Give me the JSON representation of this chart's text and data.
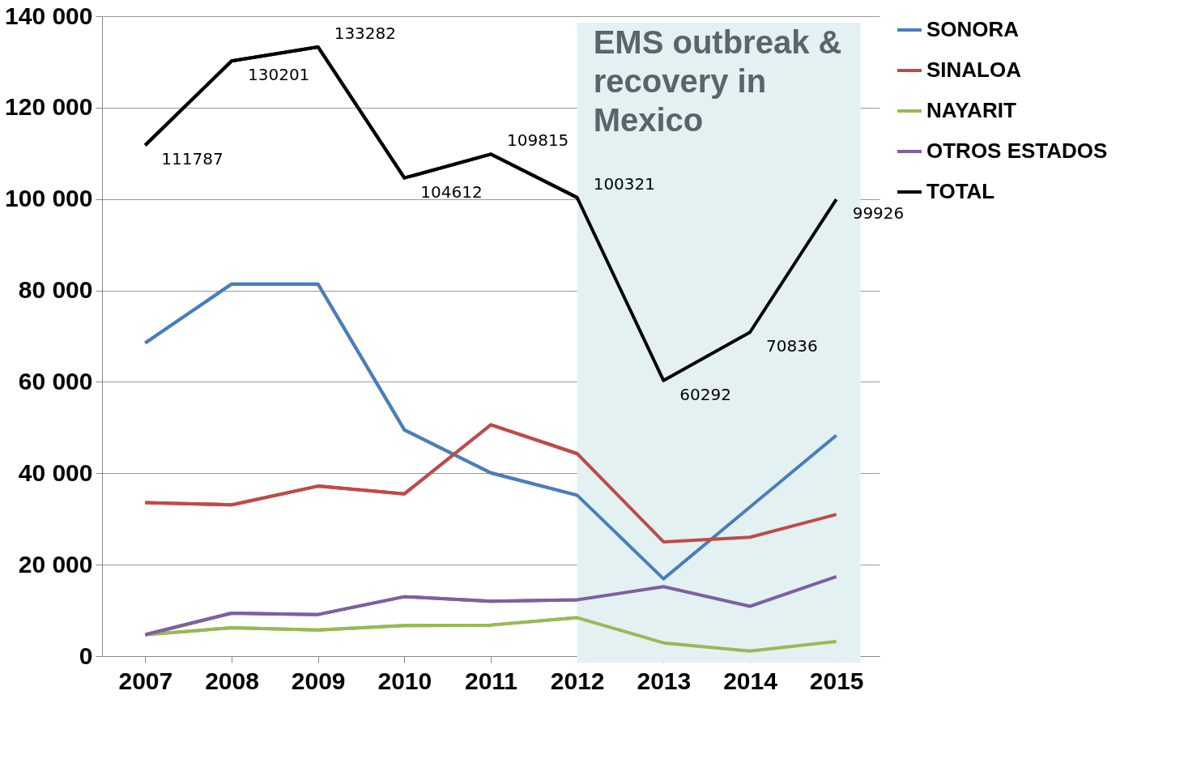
{
  "chart_data": {
    "type": "line",
    "categories": [
      "2007",
      "2008",
      "2009",
      "2010",
      "2011",
      "2012",
      "2013",
      "2014",
      "2015"
    ],
    "series": [
      {
        "name": "SONORA",
        "color": "#4a7ebb",
        "values": [
          68500,
          81400,
          81400,
          49500,
          40100,
          35200,
          16900,
          32600,
          48300
        ]
      },
      {
        "name": "SINALOA",
        "color": "#be4b48",
        "values": [
          33600,
          33100,
          37200,
          35500,
          50600,
          44300,
          25000,
          26000,
          31000
        ]
      },
      {
        "name": "NAYARIT",
        "color": "#98b954",
        "values": [
          4700,
          6200,
          5700,
          6700,
          6800,
          8400,
          2900,
          1100,
          3200
        ]
      },
      {
        "name": "OTROS ESTADOS",
        "color": "#7d60a0",
        "values": [
          4700,
          9400,
          9100,
          13000,
          12000,
          12300,
          15200,
          10900,
          17400
        ]
      },
      {
        "name": "TOTAL",
        "color": "#000000",
        "values": [
          111787,
          130201,
          133282,
          104612,
          109815,
          100321,
          60292,
          70836,
          99926
        ],
        "value_labels": [
          "111787",
          "130201",
          "133282",
          "104612",
          "109815",
          "100321",
          "60292",
          "70836",
          "99926"
        ]
      }
    ],
    "ylim": [
      0,
      140000
    ],
    "yticks": [
      {
        "value": 0,
        "label": "0"
      },
      {
        "value": 20000,
        "label": "20 000"
      },
      {
        "value": 40000,
        "label": "40 000"
      },
      {
        "value": 60000,
        "label": "60 000"
      },
      {
        "value": 80000,
        "label": "80 000"
      },
      {
        "value": 100000,
        "label": "100 000"
      },
      {
        "value": 120000,
        "label": "120 000"
      },
      {
        "value": 140000,
        "label": "140 000"
      }
    ],
    "bands": [
      {
        "axis": "x",
        "from": "2012",
        "to": "2015",
        "label": "EMS outbreak & recovery in Mexico",
        "color": "#e3f1f2"
      }
    ],
    "grid": "y",
    "legend": "right",
    "marker": "none",
    "line_style": "solid"
  }
}
